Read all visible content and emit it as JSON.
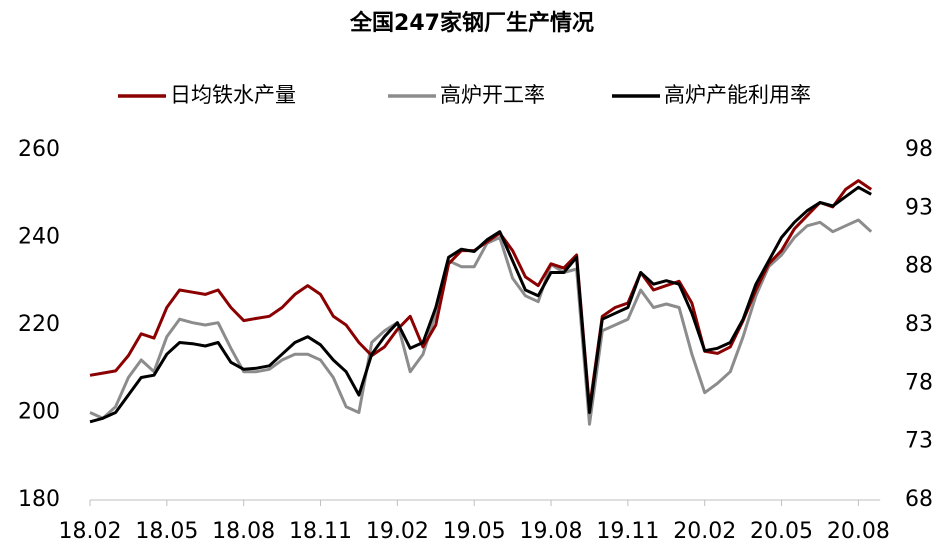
{
  "chart_data": {
    "type": "line",
    "title": "全国247家钢厂生产情况",
    "categories": [
      "18.02",
      null,
      null,
      null,
      null,
      null,
      "18.05",
      null,
      null,
      null,
      null,
      null,
      "18.08",
      null,
      null,
      null,
      null,
      null,
      "18.11",
      null,
      null,
      null,
      null,
      null,
      "19.02",
      null,
      null,
      null,
      null,
      null,
      "19.05",
      null,
      null,
      null,
      null,
      null,
      "19.08",
      null,
      null,
      null,
      null,
      null,
      "19.11",
      null,
      null,
      null,
      null,
      null,
      "20.02",
      null,
      null,
      null,
      null,
      null,
      "20.05",
      null,
      null,
      null,
      null,
      null,
      "20.08",
      null
    ],
    "series": [
      {
        "name": "日均铁水产量",
        "color": "#8b0000",
        "axis": "y",
        "values": [
          208.5,
          209,
          209.5,
          213,
          218,
          217,
          224,
          228,
          227.5,
          227,
          228,
          224,
          221,
          221.5,
          222,
          224,
          227,
          229,
          227,
          222,
          220,
          216,
          213,
          215,
          219,
          222,
          215,
          220,
          234,
          237,
          237,
          239,
          241,
          237,
          231,
          229,
          234,
          233,
          236,
          201,
          222,
          224,
          225,
          232,
          228,
          229,
          230,
          225,
          214,
          213.5,
          215,
          221,
          228,
          234,
          237,
          242,
          245,
          248,
          247,
          251,
          253,
          251
        ]
      },
      {
        "name": "高炉开工率",
        "color": "#8c8c8c",
        "axis": "y2",
        "values": [
          75.5,
          75,
          76,
          78.5,
          80,
          79,
          82,
          83.5,
          83.2,
          83,
          83.2,
          81,
          79,
          79,
          79.2,
          80,
          80.5,
          80.5,
          80,
          78.5,
          76,
          75.5,
          81.5,
          82.5,
          83.2,
          79,
          80.5,
          84,
          88.5,
          88,
          88,
          90,
          90.5,
          87,
          85.5,
          85,
          88.2,
          87.5,
          87.8,
          74.5,
          82.5,
          83,
          83.5,
          86,
          84.5,
          84.8,
          84.5,
          80.5,
          77.2,
          78,
          79,
          82,
          85.5,
          88,
          89,
          90.5,
          91.5,
          91.8,
          91,
          91.5,
          92,
          91
        ]
      },
      {
        "name": "高炉产能利用率",
        "color": "#000000",
        "axis": "y2",
        "values": [
          74.7,
          75,
          75.5,
          77,
          78.5,
          78.7,
          80.5,
          81.5,
          81.4,
          81.2,
          81.5,
          79.8,
          79.2,
          79.3,
          79.5,
          80.5,
          81.5,
          82,
          81.3,
          80,
          79,
          77,
          80.5,
          82,
          83.2,
          81,
          81.5,
          84.5,
          88.8,
          89.5,
          89.3,
          90.3,
          91,
          88.5,
          86,
          85.5,
          87.5,
          87.5,
          88.8,
          75.5,
          83.5,
          84,
          84.5,
          87.5,
          86.5,
          86.8,
          86.5,
          84,
          80.8,
          81,
          81.5,
          83.5,
          86.5,
          88.5,
          90.5,
          91.8,
          92.8,
          93.5,
          93.2,
          94,
          94.8,
          94.2
        ]
      }
    ],
    "ylim": [
      180,
      260
    ],
    "yticks": [
      180,
      200,
      220,
      240,
      260
    ],
    "y2lim": [
      68,
      98
    ],
    "y2ticks": [
      68,
      73,
      78,
      83,
      88,
      93,
      98
    ],
    "grid": false
  }
}
